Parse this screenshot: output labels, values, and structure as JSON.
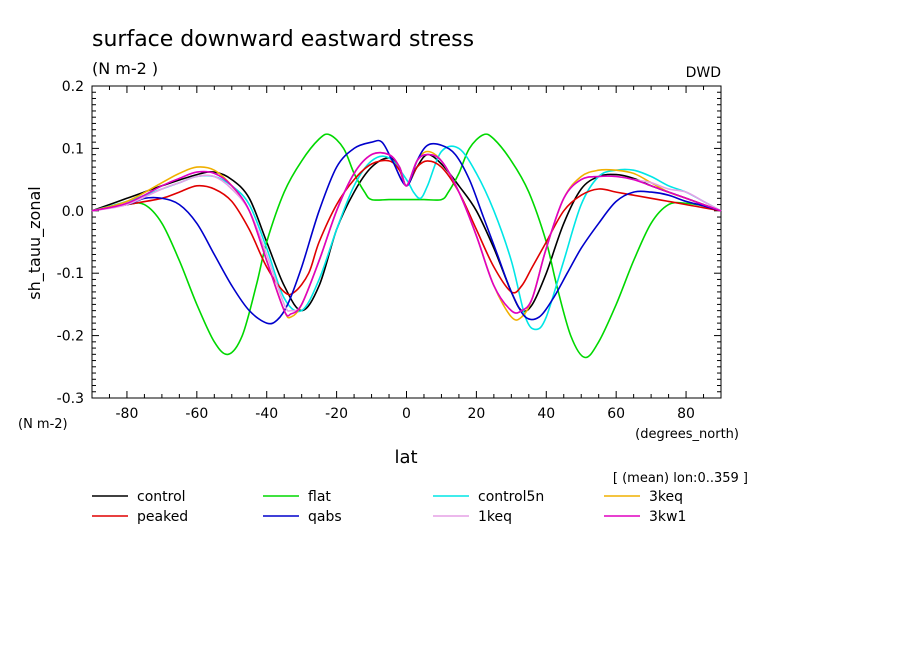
{
  "chart_data": {
    "type": "line",
    "title": "surface downward eastward stress",
    "subtitle": "(N m-2  )",
    "source": "DWD",
    "xlabel": "lat",
    "x_units": "(degrees_north)",
    "ylabel": "sh_tauu_zonal",
    "y_units": "(N m-2)",
    "averaging_note": "[ (mean) lon:0..359 ]",
    "xlim": [
      -90,
      90
    ],
    "ylim": [
      -0.3,
      0.2
    ],
    "x_ticks": [
      -80,
      -60,
      -40,
      -20,
      0,
      20,
      40,
      60,
      80
    ],
    "x_tick_labels": [
      "-80",
      "-60",
      "-40",
      "-20",
      "0",
      "20",
      "40",
      "60",
      "80"
    ],
    "y_ticks": [
      -0.3,
      -0.2,
      -0.1,
      0.0,
      0.1,
      0.2
    ],
    "y_tick_labels": [
      "-0.3",
      "-0.2",
      "-0.1",
      "0.0",
      "0.1",
      "0.2"
    ],
    "grid": false,
    "legend_position": "bottom",
    "series": [
      {
        "name": "control",
        "color": "#000000",
        "x": [
          -90,
          -80,
          -70,
          -60,
          -55,
          -50,
          -45,
          -40,
          -35,
          -30,
          -25,
          -20,
          -15,
          -10,
          -5,
          -2,
          0,
          3,
          6,
          10,
          15,
          20,
          25,
          30,
          33,
          36,
          40,
          45,
          50,
          55,
          60,
          65,
          70,
          75,
          80,
          85,
          90
        ],
        "y": [
          0,
          0.02,
          0.04,
          0.058,
          0.062,
          0.05,
          0.02,
          -0.05,
          -0.12,
          -0.16,
          -0.12,
          -0.03,
          0.03,
          0.07,
          0.085,
          0.07,
          0.04,
          0.07,
          0.09,
          0.075,
          0.04,
          0.0,
          -0.06,
          -0.13,
          -0.16,
          -0.15,
          -0.1,
          -0.02,
          0.035,
          0.055,
          0.058,
          0.052,
          0.04,
          0.03,
          0.02,
          0.01,
          0
        ]
      },
      {
        "name": "flat",
        "color": "#00d800",
        "x": [
          -90,
          -80,
          -75,
          -70,
          -65,
          -60,
          -55,
          -51,
          -47,
          -43,
          -40,
          -35,
          -30,
          -25,
          -22,
          -18,
          -15,
          -12,
          -10,
          -5,
          0,
          5,
          10,
          12,
          15,
          18,
          22,
          25,
          30,
          35,
          40,
          43,
          47,
          51,
          55,
          60,
          65,
          70,
          75,
          80,
          85,
          90
        ],
        "y": [
          0,
          0.01,
          0.01,
          -0.02,
          -0.08,
          -0.15,
          -0.21,
          -0.23,
          -0.2,
          -0.12,
          -0.05,
          0.03,
          0.08,
          0.115,
          0.122,
          0.1,
          0.06,
          0.03,
          0.018,
          0.018,
          0.018,
          0.018,
          0.018,
          0.03,
          0.06,
          0.1,
          0.122,
          0.115,
          0.08,
          0.03,
          -0.05,
          -0.12,
          -0.2,
          -0.235,
          -0.21,
          -0.15,
          -0.08,
          -0.02,
          0.01,
          0.012,
          0.008,
          0
        ]
      },
      {
        "name": "control5n",
        "color": "#00e6e6",
        "x": [
          -90,
          -80,
          -70,
          -65,
          -60,
          -55,
          -50,
          -45,
          -40,
          -35,
          -30,
          -25,
          -20,
          -15,
          -10,
          -5,
          0,
          2,
          4,
          6,
          10,
          15,
          20,
          25,
          30,
          34,
          37,
          40,
          45,
          50,
          55,
          60,
          65,
          70,
          75,
          80,
          85,
          90
        ],
        "y": [
          0,
          0.015,
          0.035,
          0.045,
          0.055,
          0.055,
          0.04,
          0.01,
          -0.06,
          -0.14,
          -0.16,
          -0.11,
          -0.03,
          0.04,
          0.08,
          0.085,
          0.05,
          0.03,
          0.02,
          0.04,
          0.095,
          0.1,
          0.06,
          0.0,
          -0.08,
          -0.17,
          -0.19,
          -0.17,
          -0.08,
          0.01,
          0.055,
          0.065,
          0.065,
          0.055,
          0.04,
          0.03,
          0.015,
          0
        ]
      },
      {
        "name": "3keq",
        "color": "#f0b000",
        "x": [
          -90,
          -80,
          -70,
          -65,
          -60,
          -55,
          -50,
          -45,
          -40,
          -35,
          -33,
          -30,
          -25,
          -20,
          -15,
          -10,
          -5,
          -2,
          0,
          3,
          6,
          10,
          15,
          20,
          25,
          30,
          33,
          36,
          40,
          45,
          50,
          55,
          60,
          65,
          70,
          75,
          80,
          85,
          90
        ],
        "y": [
          0,
          0.015,
          0.045,
          0.06,
          0.07,
          0.065,
          0.04,
          0.0,
          -0.08,
          -0.16,
          -0.17,
          -0.15,
          -0.08,
          0.0,
          0.06,
          0.09,
          0.09,
          0.07,
          0.04,
          0.08,
          0.095,
          0.08,
          0.03,
          -0.04,
          -0.12,
          -0.17,
          -0.17,
          -0.14,
          -0.06,
          0.02,
          0.055,
          0.065,
          0.065,
          0.06,
          0.045,
          0.03,
          0.02,
          0.01,
          0
        ]
      },
      {
        "name": "peaked",
        "color": "#e00000",
        "x": [
          -90,
          -80,
          -70,
          -65,
          -60,
          -55,
          -50,
          -45,
          -40,
          -35,
          -32,
          -28,
          -25,
          -20,
          -15,
          -10,
          -5,
          -2,
          0,
          3,
          6,
          10,
          15,
          20,
          25,
          30,
          33,
          36,
          40,
          45,
          50,
          55,
          60,
          65,
          70,
          75,
          80,
          85,
          90
        ],
        "y": [
          0,
          0.01,
          0.02,
          0.03,
          0.04,
          0.035,
          0.015,
          -0.03,
          -0.09,
          -0.13,
          -0.13,
          -0.1,
          -0.05,
          0.01,
          0.05,
          0.075,
          0.08,
          0.065,
          0.04,
          0.07,
          0.08,
          0.07,
          0.03,
          -0.03,
          -0.09,
          -0.13,
          -0.12,
          -0.09,
          -0.05,
          0.0,
          0.025,
          0.035,
          0.03,
          0.025,
          0.02,
          0.015,
          0.01,
          0.005,
          0
        ]
      },
      {
        "name": "qabs",
        "color": "#0000cc",
        "x": [
          -90,
          -80,
          -75,
          -70,
          -65,
          -60,
          -55,
          -50,
          -45,
          -40,
          -37,
          -34,
          -30,
          -25,
          -20,
          -15,
          -10,
          -7,
          -4,
          0,
          3,
          6,
          10,
          14,
          18,
          22,
          26,
          30,
          34,
          38,
          42,
          46,
          50,
          55,
          60,
          65,
          70,
          75,
          80,
          85,
          90
        ],
        "y": [
          0,
          0.01,
          0.02,
          0.02,
          0.01,
          -0.02,
          -0.07,
          -0.12,
          -0.16,
          -0.18,
          -0.175,
          -0.15,
          -0.09,
          0.0,
          0.07,
          0.1,
          0.11,
          0.11,
          0.08,
          0.04,
          0.08,
          0.105,
          0.105,
          0.09,
          0.05,
          -0.01,
          -0.07,
          -0.13,
          -0.17,
          -0.17,
          -0.14,
          -0.1,
          -0.06,
          -0.02,
          0.015,
          0.03,
          0.03,
          0.025,
          0.015,
          0.008,
          0
        ]
      },
      {
        "name": "1keq",
        "color": "#e6a0e6",
        "x": [
          -90,
          -80,
          -70,
          -65,
          -60,
          -55,
          -50,
          -45,
          -40,
          -35,
          -33,
          -30,
          -25,
          -20,
          -15,
          -10,
          -5,
          -2,
          0,
          3,
          6,
          10,
          15,
          20,
          25,
          30,
          33,
          36,
          40,
          45,
          50,
          55,
          60,
          65,
          70,
          75,
          80,
          85,
          90
        ],
        "y": [
          0,
          0.01,
          0.035,
          0.045,
          0.055,
          0.055,
          0.035,
          0.0,
          -0.07,
          -0.15,
          -0.16,
          -0.15,
          -0.08,
          0.0,
          0.06,
          0.09,
          0.09,
          0.07,
          0.04,
          0.08,
          0.09,
          0.08,
          0.03,
          -0.04,
          -0.12,
          -0.16,
          -0.16,
          -0.14,
          -0.06,
          0.02,
          0.05,
          0.055,
          0.055,
          0.05,
          0.045,
          0.035,
          0.03,
          0.015,
          0
        ]
      },
      {
        "name": "3kw1",
        "color": "#e000c0",
        "x": [
          -90,
          -80,
          -70,
          -65,
          -60,
          -55,
          -50,
          -45,
          -40,
          -35,
          -33,
          -30,
          -25,
          -20,
          -15,
          -10,
          -5,
          -2,
          0,
          3,
          6,
          10,
          15,
          20,
          25,
          30,
          33,
          36,
          40,
          45,
          50,
          55,
          60,
          65,
          70,
          75,
          80,
          85,
          90
        ],
        "y": [
          0,
          0.012,
          0.04,
          0.052,
          0.062,
          0.06,
          0.04,
          0.0,
          -0.08,
          -0.16,
          -0.165,
          -0.15,
          -0.08,
          0.0,
          0.06,
          0.09,
          0.09,
          0.07,
          0.04,
          0.08,
          0.09,
          0.08,
          0.03,
          -0.04,
          -0.12,
          -0.16,
          -0.16,
          -0.14,
          -0.06,
          0.02,
          0.05,
          0.055,
          0.055,
          0.05,
          0.04,
          0.03,
          0.02,
          0.01,
          0
        ]
      }
    ]
  },
  "legend": [
    {
      "label": "control",
      "color": "#000000"
    },
    {
      "label": "peaked",
      "color": "#e00000"
    },
    {
      "label": "flat",
      "color": "#00d800"
    },
    {
      "label": "qabs",
      "color": "#0000cc"
    },
    {
      "label": "control5n",
      "color": "#00e6e6"
    },
    {
      "label": "1keq",
      "color": "#e6a0e6"
    },
    {
      "label": "3keq",
      "color": "#f0b000"
    },
    {
      "label": "3kw1",
      "color": "#e000c0"
    }
  ]
}
